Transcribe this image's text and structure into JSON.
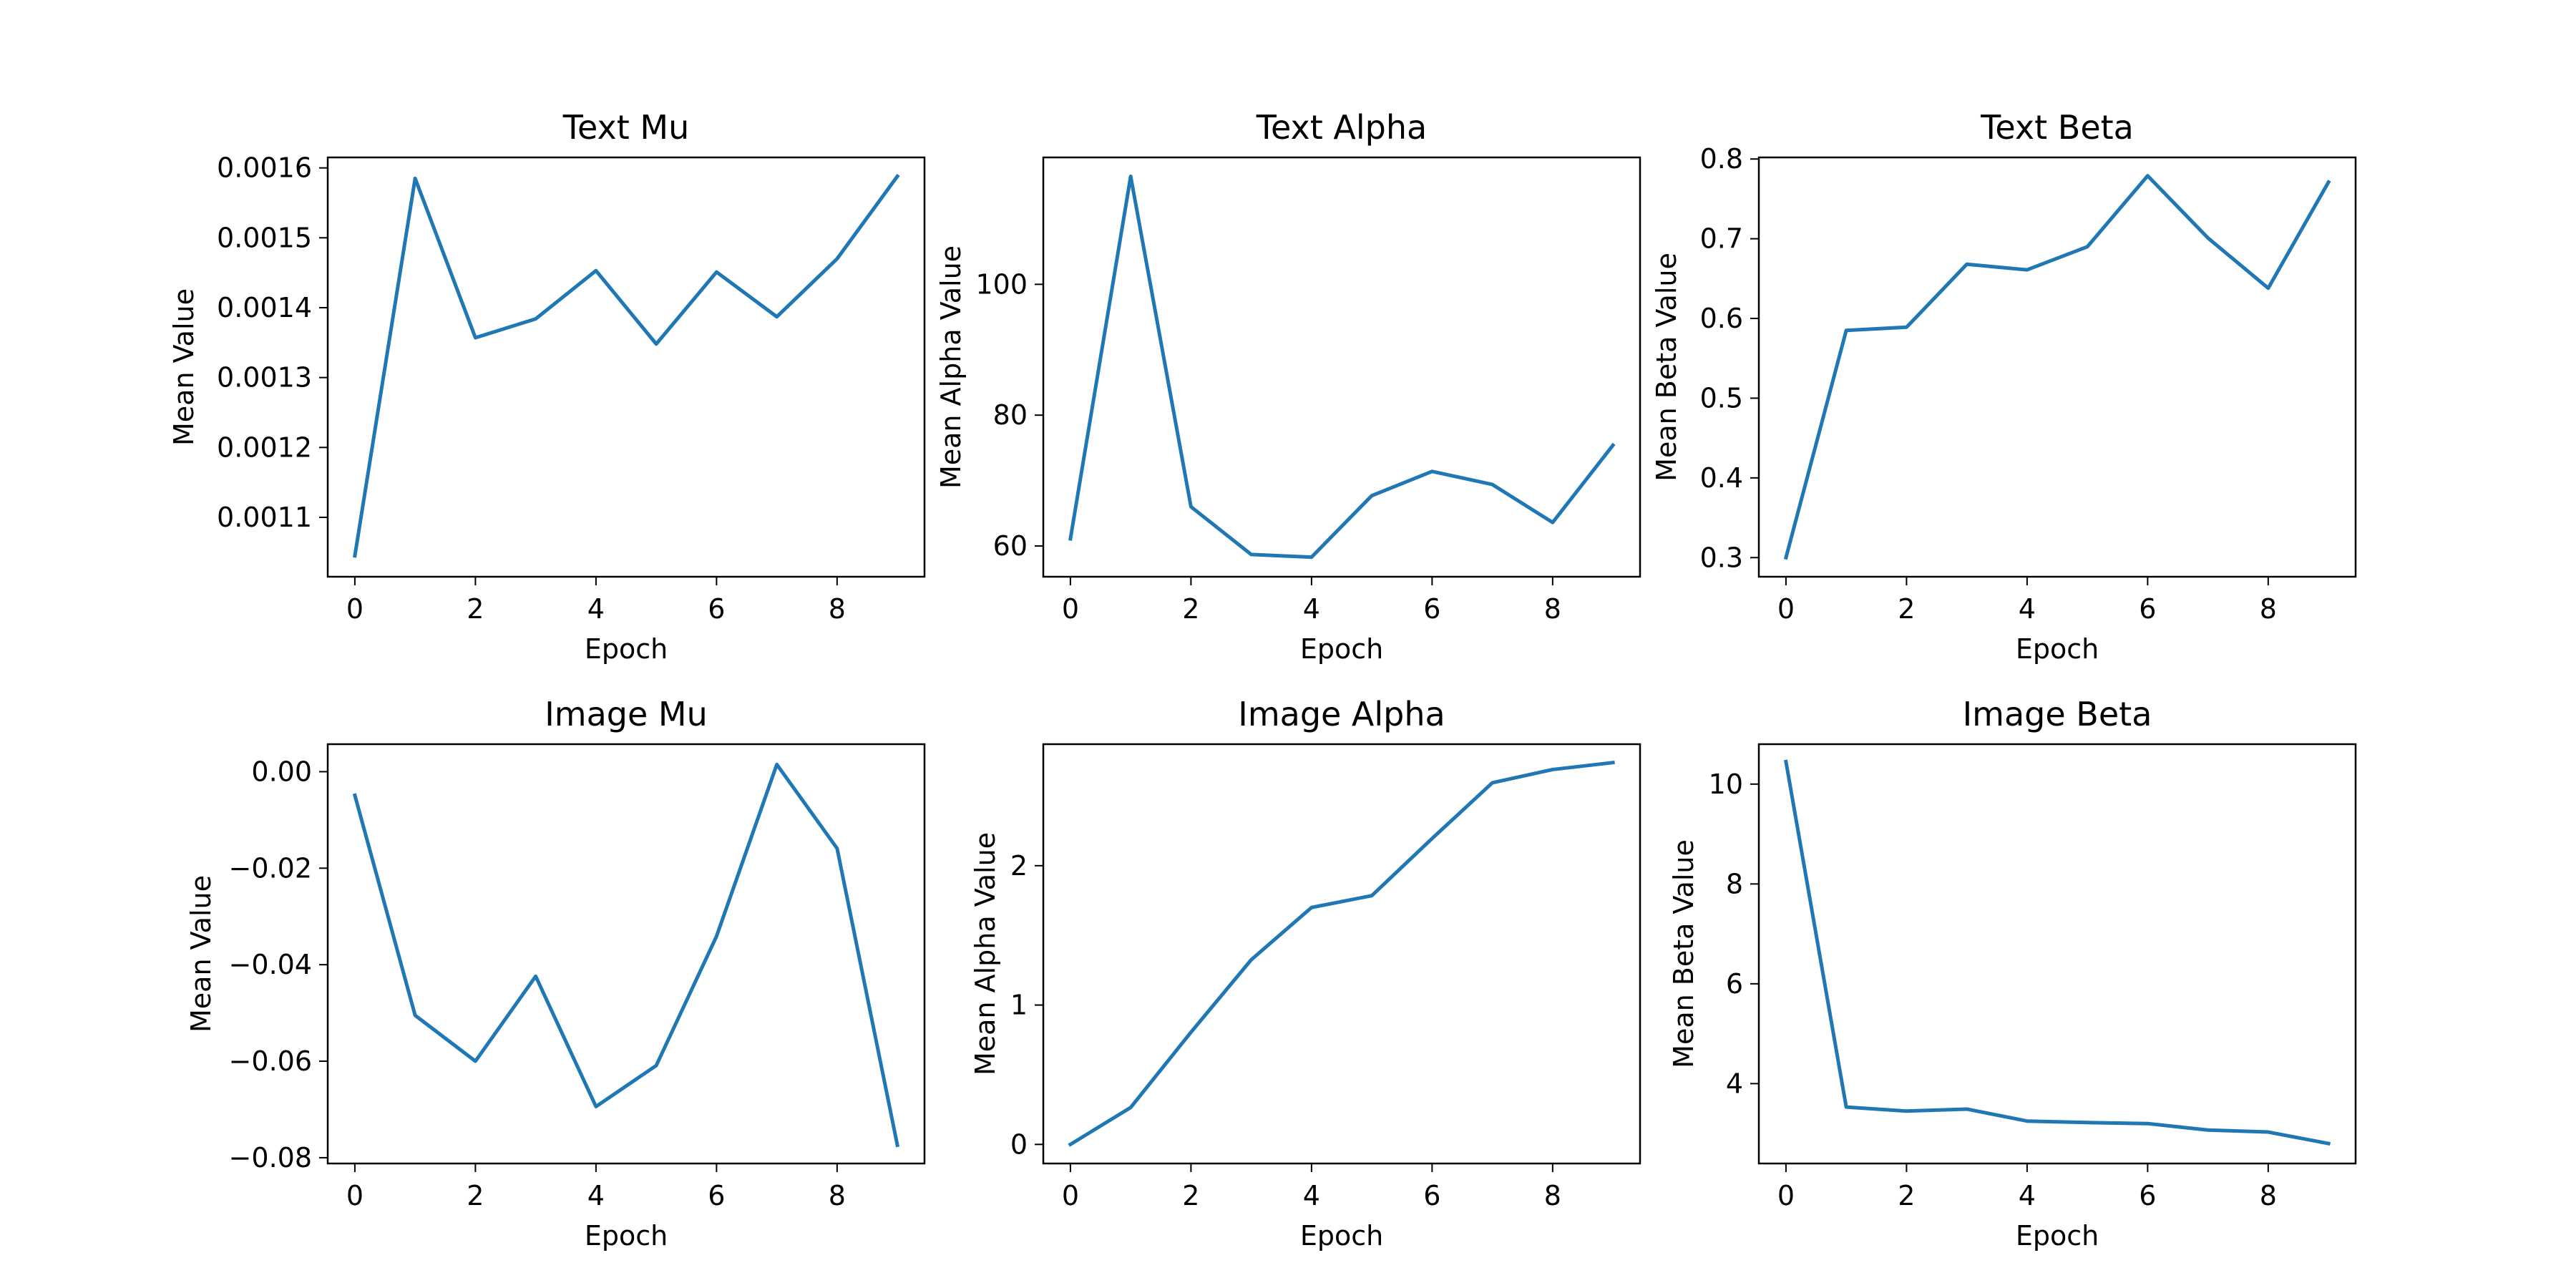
{
  "chart_data": [
    {
      "type": "line",
      "title": "Text Mu",
      "xlabel": "Epoch",
      "ylabel": "Mean Value",
      "xlim": [
        -0.45,
        9.45
      ],
      "ylim": [
        0.001015,
        0.001615
      ],
      "xticks": [
        0,
        2,
        4,
        6,
        8
      ],
      "xtick_labels": [
        "0",
        "2",
        "4",
        "6",
        "8"
      ],
      "yticks": [
        0.0011,
        0.0012,
        0.0013,
        0.0014,
        0.0015,
        0.0016
      ],
      "ytick_labels": [
        "0.0011",
        "0.0012",
        "0.0013",
        "0.0014",
        "0.0015",
        "0.0016"
      ],
      "x": [
        0,
        1,
        2,
        3,
        4,
        5,
        6,
        7,
        8,
        9
      ],
      "series": [
        {
          "color": "#1f77b4",
          "values": [
            0.001045,
            0.001585,
            0.001357,
            0.001384,
            0.001453,
            0.001348,
            0.001451,
            0.001387,
            0.00147,
            0.001588
          ]
        }
      ],
      "grid": false,
      "legend": false
    },
    {
      "type": "line",
      "title": "Text Alpha",
      "xlabel": "Epoch",
      "ylabel": "Mean Alpha Value",
      "xlim": [
        -0.45,
        9.45
      ],
      "ylim": [
        55.3,
        119.4
      ],
      "xticks": [
        0,
        2,
        4,
        6,
        8
      ],
      "xtick_labels": [
        "0",
        "2",
        "4",
        "6",
        "8"
      ],
      "yticks": [
        60,
        80,
        100
      ],
      "ytick_labels": [
        "60",
        "80",
        "100"
      ],
      "x": [
        0,
        1,
        2,
        3,
        4,
        5,
        6,
        7,
        8,
        9
      ],
      "series": [
        {
          "color": "#1f77b4",
          "values": [
            61.1,
            116.5,
            66.0,
            58.7,
            58.3,
            67.7,
            71.4,
            69.4,
            63.6,
            75.4
          ]
        }
      ],
      "grid": false,
      "legend": false
    },
    {
      "type": "line",
      "title": "Text Beta",
      "xlabel": "Epoch",
      "ylabel": "Mean Beta Value",
      "xlim": [
        -0.45,
        9.45
      ],
      "ylim": [
        0.276,
        0.802
      ],
      "xticks": [
        0,
        2,
        4,
        6,
        8
      ],
      "xtick_labels": [
        "0",
        "2",
        "4",
        "6",
        "8"
      ],
      "yticks": [
        0.3,
        0.4,
        0.5,
        0.6,
        0.7,
        0.8
      ],
      "ytick_labels": [
        "0.3",
        "0.4",
        "0.5",
        "0.6",
        "0.7",
        "0.8"
      ],
      "x": [
        0,
        1,
        2,
        3,
        4,
        5,
        6,
        7,
        8,
        9
      ],
      "series": [
        {
          "color": "#1f77b4",
          "values": [
            0.3,
            0.585,
            0.589,
            0.668,
            0.661,
            0.69,
            0.779,
            0.701,
            0.638,
            0.771
          ]
        }
      ],
      "grid": false,
      "legend": false
    },
    {
      "type": "line",
      "title": "Image Mu",
      "xlabel": "Epoch",
      "ylabel": "Mean Value",
      "xlim": [
        -0.45,
        9.45
      ],
      "ylim": [
        -0.0812,
        0.0057
      ],
      "xticks": [
        0,
        2,
        4,
        6,
        8
      ],
      "xtick_labels": [
        "0",
        "2",
        "4",
        "6",
        "8"
      ],
      "yticks": [
        -0.08,
        -0.06,
        -0.04,
        -0.02,
        0.0
      ],
      "ytick_labels": [
        "−0.08",
        "−0.06",
        "−0.04",
        "−0.02",
        "0.00"
      ],
      "x": [
        0,
        1,
        2,
        3,
        4,
        5,
        6,
        7,
        8,
        9
      ],
      "series": [
        {
          "color": "#1f77b4",
          "values": [
            -0.0049,
            -0.0505,
            -0.06,
            -0.0424,
            -0.0694,
            -0.0609,
            -0.0341,
            0.0015,
            -0.0159,
            -0.0774
          ]
        }
      ],
      "grid": false,
      "legend": false
    },
    {
      "type": "line",
      "title": "Image Alpha",
      "xlabel": "Epoch",
      "ylabel": "Mean Alpha Value",
      "xlim": [
        -0.45,
        9.45
      ],
      "ylim": [
        -0.137,
        2.872
      ],
      "xticks": [
        0,
        2,
        4,
        6,
        8
      ],
      "xtick_labels": [
        "0",
        "2",
        "4",
        "6",
        "8"
      ],
      "yticks": [
        0,
        1,
        2
      ],
      "ytick_labels": [
        "0",
        "1",
        "2"
      ],
      "x": [
        0,
        1,
        2,
        3,
        4,
        5,
        6,
        7,
        8,
        9
      ],
      "series": [
        {
          "color": "#1f77b4",
          "values": [
            0.0,
            0.265,
            0.805,
            1.325,
            1.7,
            1.785,
            2.195,
            2.595,
            2.69,
            2.74
          ]
        }
      ],
      "grid": false,
      "legend": false
    },
    {
      "type": "line",
      "title": "Image Beta",
      "xlabel": "Epoch",
      "ylabel": "Mean Beta Value",
      "xlim": [
        -0.45,
        9.45
      ],
      "ylim": [
        2.4,
        10.8
      ],
      "xticks": [
        0,
        2,
        4,
        6,
        8
      ],
      "xtick_labels": [
        "0",
        "2",
        "4",
        "6",
        "8"
      ],
      "yticks": [
        4,
        6,
        8,
        10
      ],
      "ytick_labels": [
        "4",
        "6",
        "8",
        "10"
      ],
      "x": [
        0,
        1,
        2,
        3,
        4,
        5,
        6,
        7,
        8,
        9
      ],
      "series": [
        {
          "color": "#1f77b4",
          "values": [
            10.45,
            3.53,
            3.45,
            3.49,
            3.25,
            3.22,
            3.2,
            3.07,
            3.03,
            2.8
          ]
        }
      ],
      "grid": false,
      "legend": false
    }
  ]
}
